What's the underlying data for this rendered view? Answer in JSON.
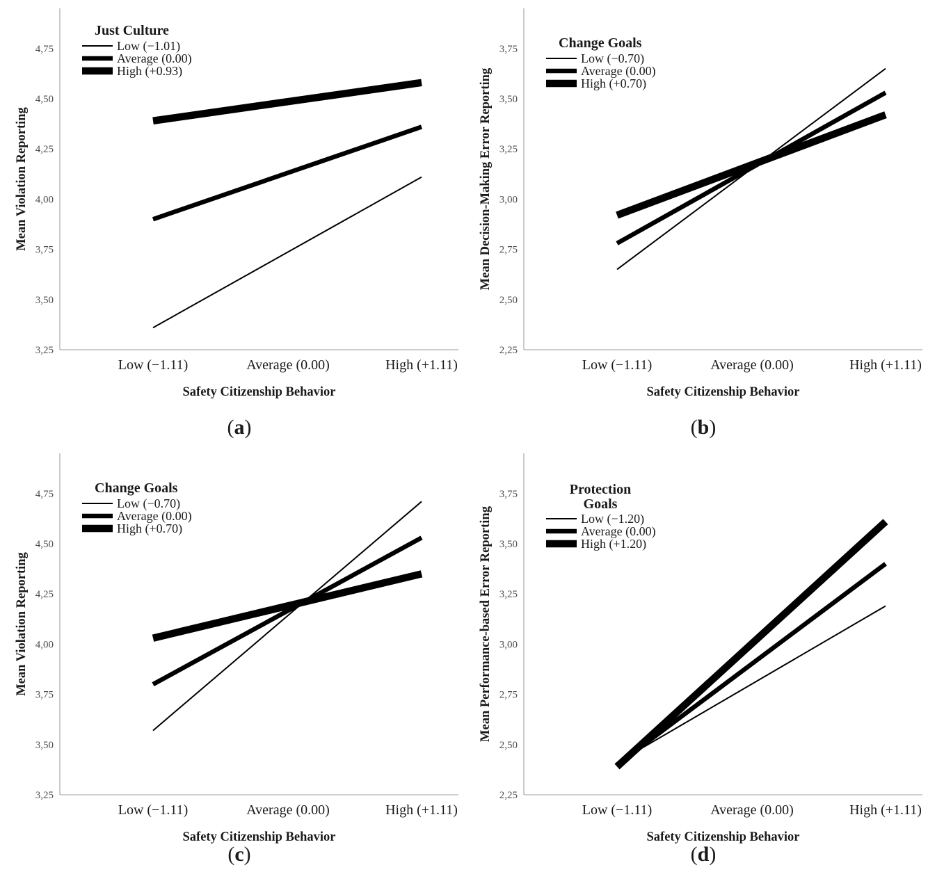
{
  "figure": {
    "shared_x_axis_label": "Safety Citizenship Behavior",
    "line_color": "#000000",
    "axis_color": "#b0b0b0",
    "background": "#ffffff"
  },
  "chart_data": [
    {
      "type": "line",
      "panel_id": "a",
      "caption": "(a)",
      "legend_title_lines": [
        "Just Culture"
      ],
      "xlabel": "Safety Citizenship Behavior",
      "ylabel": "Mean Violation Reporting",
      "categories": [
        "Low (−1.11)",
        "Average (0.00)",
        "High (+1.11)"
      ],
      "ylim": [
        3.25,
        4.95
      ],
      "ytick_values": [
        3.25,
        3.5,
        3.75,
        4.0,
        4.25,
        4.5,
        4.75
      ],
      "ytick_labels": [
        "3,25",
        "3,50",
        "3,75",
        "4,00",
        "4,25",
        "4,50",
        "4,75"
      ],
      "grid": false,
      "legend_position": "top-left-inside",
      "series": [
        {
          "name": "Low (−1.01)",
          "line_weight": "thin",
          "values": [
            3.36,
            3.74,
            4.11
          ]
        },
        {
          "name": "Average (0.00)",
          "line_weight": "medium",
          "values": [
            3.9,
            4.13,
            4.36
          ]
        },
        {
          "name": "High (+0.93)",
          "line_weight": "thick",
          "values": [
            4.39,
            4.49,
            4.58
          ]
        }
      ]
    },
    {
      "type": "line",
      "panel_id": "b",
      "caption": "(b)",
      "legend_title_lines": [
        "Change Goals"
      ],
      "xlabel": "Safety Citizenship Behavior",
      "ylabel": "Mean Decision-Making Error Reporting",
      "categories": [
        "Low (−1.11)",
        "Average (0.00)",
        "High (+1.11)"
      ],
      "ylim": [
        2.25,
        3.95
      ],
      "ytick_values": [
        2.25,
        2.5,
        2.75,
        3.0,
        3.25,
        3.5,
        3.75
      ],
      "ytick_labels": [
        "2,25",
        "2,50",
        "2,75",
        "3,00",
        "3,25",
        "3,50",
        "3,75"
      ],
      "grid": false,
      "legend_position": "top-left-inside",
      "series": [
        {
          "name": "Low (−0.70)",
          "line_weight": "thin",
          "values": [
            2.65,
            3.15,
            3.65
          ]
        },
        {
          "name": "Average (0.00)",
          "line_weight": "medium",
          "values": [
            2.78,
            3.16,
            3.53
          ]
        },
        {
          "name": "High (+0.70)",
          "line_weight": "thick",
          "values": [
            2.92,
            3.17,
            3.42
          ]
        }
      ]
    },
    {
      "type": "line",
      "panel_id": "c",
      "caption": "(c)",
      "legend_title_lines": [
        "Change Goals"
      ],
      "xlabel": "Safety Citizenship Behavior",
      "ylabel": "Mean Violation Reporting",
      "categories": [
        "Low (−1.11)",
        "Average (0.00)",
        "High (+1.11)"
      ],
      "ylim": [
        3.25,
        4.95
      ],
      "ytick_values": [
        3.25,
        3.5,
        3.75,
        4.0,
        4.25,
        4.5,
        4.75
      ],
      "ytick_labels": [
        "3,25",
        "3,50",
        "3,75",
        "4,00",
        "4,25",
        "4,50",
        "4,75"
      ],
      "grid": false,
      "legend_position": "top-left-inside",
      "series": [
        {
          "name": "Low (−0.70)",
          "line_weight": "thin",
          "values": [
            3.57,
            4.14,
            4.71
          ]
        },
        {
          "name": "Average (0.00)",
          "line_weight": "medium",
          "values": [
            3.8,
            4.17,
            4.53
          ]
        },
        {
          "name": "High (+0.70)",
          "line_weight": "thick",
          "values": [
            4.03,
            4.19,
            4.35
          ]
        }
      ]
    },
    {
      "type": "line",
      "panel_id": "d",
      "caption": "(d)",
      "legend_title_lines": [
        "Protection",
        "Goals"
      ],
      "xlabel": "Safety Citizenship Behavior",
      "ylabel": "Mean Performance-based Error Reporting",
      "categories": [
        "Low (−1.11)",
        "Average (0.00)",
        "High (+1.11)"
      ],
      "ylim": [
        2.25,
        3.95
      ],
      "ytick_values": [
        2.25,
        2.5,
        2.75,
        3.0,
        3.25,
        3.5,
        3.75
      ],
      "ytick_labels": [
        "2,25",
        "2,50",
        "2,75",
        "3,00",
        "3,25",
        "3,50",
        "3,75"
      ],
      "grid": false,
      "legend_position": "top-left-inside",
      "series": [
        {
          "name": "Low (−1.20)",
          "line_weight": "thin",
          "values": [
            2.41,
            2.8,
            3.19
          ]
        },
        {
          "name": "Average (0.00)",
          "line_weight": "medium",
          "values": [
            2.4,
            2.9,
            3.4
          ]
        },
        {
          "name": "High (+1.20)",
          "line_weight": "thick",
          "values": [
            2.39,
            3.0,
            3.61
          ]
        }
      ]
    }
  ]
}
